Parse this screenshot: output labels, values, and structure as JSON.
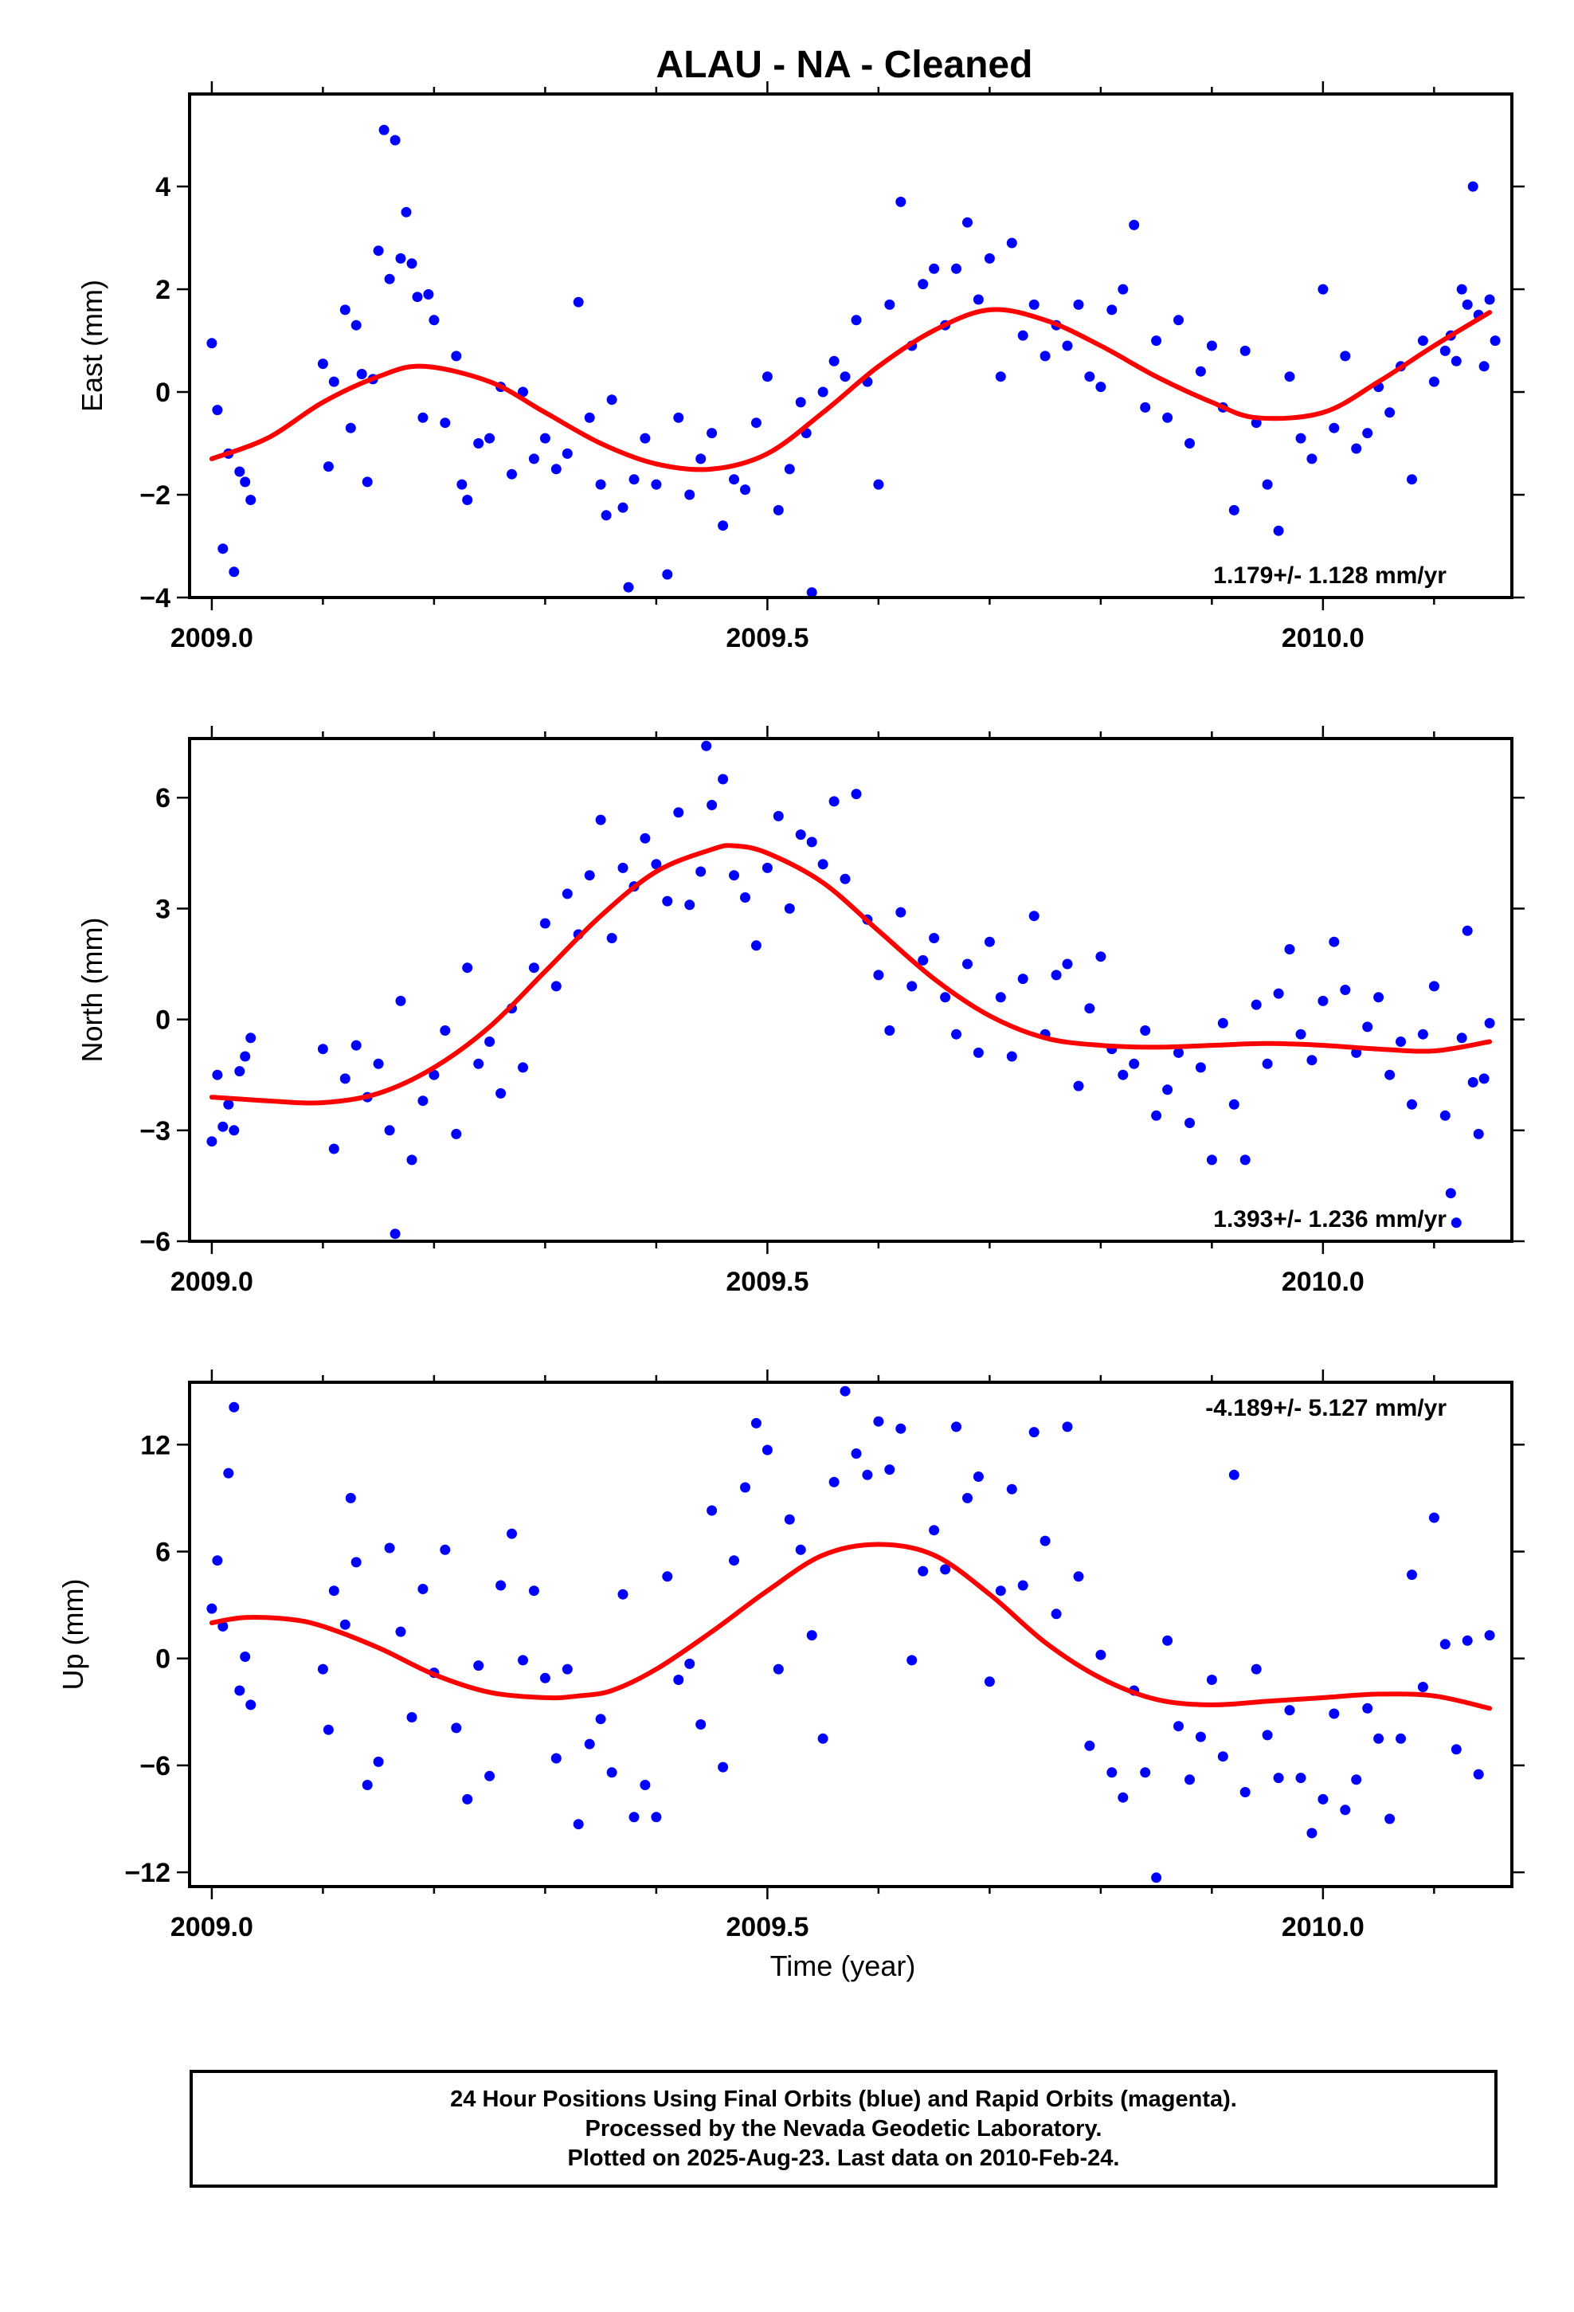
{
  "page": {
    "title": "ALAU  - NA - Cleaned",
    "xlabel": "Time (year)",
    "footer_lines": [
      "24 Hour Positions Using Final Orbits (blue) and Rapid Orbits (magenta).",
      "Processed by the Nevada Geodetic Laboratory.",
      "Plotted on 2025-Aug-23. Last data on 2010-Feb-24."
    ]
  },
  "colors": {
    "points": "#0000ff",
    "fit": "#ff0000",
    "frame": "#000000"
  },
  "chart_data": [
    {
      "type": "scatter",
      "ylabel": "East (mm)",
      "rate_text": "1.179+/- 1.128 mm/yr",
      "rate_position": "bottom-right",
      "xlim": [
        2008.98,
        2010.17
      ],
      "ylim": [
        -4,
        5.8
      ],
      "xticks": [
        2009.0,
        2009.5,
        2010.0
      ],
      "xtick_labels": [
        "2009.0",
        "2009.5",
        "2010.0"
      ],
      "yticks": [
        -4,
        -2,
        0,
        2,
        4
      ],
      "ytick_labels": [
        "−4",
        "−2",
        "0",
        "2",
        "4"
      ],
      "fit_curve": {
        "x": [
          2009.0,
          2009.05,
          2009.1,
          2009.15,
          2009.19,
          2009.25,
          2009.3,
          2009.35,
          2009.4,
          2009.45,
          2009.5,
          2009.55,
          2009.6,
          2009.65,
          2009.7,
          2009.75,
          2009.8,
          2009.85,
          2009.9,
          2009.94,
          2010.0,
          2010.05,
          2010.1,
          2010.15
        ],
        "y": [
          -1.3,
          -0.9,
          -0.2,
          0.3,
          0.5,
          0.2,
          -0.4,
          -1.0,
          -1.4,
          -1.5,
          -1.2,
          -0.4,
          0.5,
          1.2,
          1.6,
          1.4,
          0.9,
          0.3,
          -0.2,
          -0.5,
          -0.4,
          0.2,
          0.9,
          1.55
        ]
      },
      "points": {
        "x": [
          2009.0,
          2009.005,
          2009.01,
          2009.015,
          2009.02,
          2009.025,
          2009.03,
          2009.035,
          2009.1,
          2009.105,
          2009.11,
          2009.12,
          2009.125,
          2009.13,
          2009.135,
          2009.14,
          2009.145,
          2009.15,
          2009.155,
          2009.16,
          2009.165,
          2009.17,
          2009.175,
          2009.18,
          2009.185,
          2009.19,
          2009.195,
          2009.2,
          2009.21,
          2009.22,
          2009.225,
          2009.23,
          2009.24,
          2009.25,
          2009.26,
          2009.27,
          2009.28,
          2009.29,
          2009.3,
          2009.31,
          2009.32,
          2009.33,
          2009.34,
          2009.35,
          2009.355,
          2009.36,
          2009.37,
          2009.375,
          2009.38,
          2009.39,
          2009.4,
          2009.41,
          2009.42,
          2009.43,
          2009.44,
          2009.45,
          2009.46,
          2009.47,
          2009.48,
          2009.49,
          2009.5,
          2009.51,
          2009.52,
          2009.53,
          2009.535,
          2009.54,
          2009.55,
          2009.56,
          2009.57,
          2009.58,
          2009.59,
          2009.6,
          2009.61,
          2009.62,
          2009.63,
          2009.64,
          2009.65,
          2009.66,
          2009.67,
          2009.68,
          2009.69,
          2009.7,
          2009.71,
          2009.72,
          2009.73,
          2009.74,
          2009.75,
          2009.76,
          2009.77,
          2009.78,
          2009.79,
          2009.8,
          2009.81,
          2009.82,
          2009.83,
          2009.84,
          2009.85,
          2009.86,
          2009.87,
          2009.88,
          2009.89,
          2009.9,
          2009.91,
          2009.92,
          2009.93,
          2009.94,
          2009.95,
          2009.96,
          2009.97,
          2009.98,
          2009.99,
          2010.0,
          2010.01,
          2010.02,
          2010.03,
          2010.04,
          2010.05,
          2010.06,
          2010.07,
          2010.08,
          2010.09,
          2010.1,
          2010.11,
          2010.115,
          2010.12,
          2010.125,
          2010.13,
          2010.135,
          2010.14,
          2010.145,
          2010.15,
          2010.155
        ],
        "y": [
          0.95,
          -0.35,
          -3.05,
          -1.2,
          -3.5,
          -1.55,
          -1.75,
          -2.1,
          0.55,
          -1.45,
          0.2,
          1.6,
          -0.7,
          1.3,
          0.35,
          -1.75,
          0.25,
          2.75,
          5.1,
          2.2,
          4.9,
          2.6,
          3.5,
          2.5,
          1.85,
          -0.5,
          1.9,
          1.4,
          -0.6,
          0.7,
          -1.8,
          -2.1,
          -1.0,
          -0.9,
          0.1,
          -1.6,
          0.0,
          -1.3,
          -0.9,
          -1.5,
          -1.2,
          1.75,
          -0.5,
          -1.8,
          -2.4,
          -0.15,
          -2.25,
          -3.8,
          -1.7,
          -0.9,
          -1.8,
          -3.55,
          -0.5,
          -2.0,
          -1.3,
          -0.8,
          -2.6,
          -1.7,
          -1.9,
          -0.6,
          0.3,
          -2.3,
          -1.5,
          -0.2,
          -0.8,
          -3.9,
          0.0,
          0.6,
          0.3,
          1.4,
          0.2,
          -1.8,
          1.7,
          3.7,
          0.9,
          2.1,
          2.4,
          1.3,
          2.4,
          3.3,
          1.8,
          2.6,
          0.3,
          2.9,
          1.1,
          1.7,
          0.7,
          1.3,
          0.9,
          1.7,
          0.3,
          0.1,
          1.6,
          2.0,
          3.25,
          -0.3,
          1.0,
          -0.5,
          1.4,
          -1.0,
          0.4,
          0.9,
          -0.3,
          -2.3,
          0.8,
          -0.6,
          -1.8,
          -2.7,
          0.3,
          -0.9,
          -1.3,
          2.0,
          -0.7,
          0.7,
          -1.1,
          -0.8,
          0.1,
          -0.4,
          0.5,
          -1.7,
          1.0,
          0.2,
          0.8,
          1.1,
          0.6,
          2.0,
          1.7,
          4.0,
          1.5,
          0.5,
          1.8,
          1.0
        ],
        "size": "small"
      }
    },
    {
      "type": "scatter",
      "ylabel": "North (mm)",
      "rate_text": "1.393+/- 1.236 mm/yr",
      "rate_position": "bottom-right",
      "xlim": [
        2008.98,
        2010.17
      ],
      "ylim": [
        -6,
        7.6
      ],
      "xticks": [
        2009.0,
        2009.5,
        2010.0
      ],
      "xtick_labels": [
        "2009.0",
        "2009.5",
        "2010.0"
      ],
      "yticks": [
        -6,
        -3,
        0,
        3,
        6
      ],
      "ytick_labels": [
        "−6",
        "−3",
        "0",
        "3",
        "6"
      ],
      "fit_curve": {
        "x": [
          2009.0,
          2009.05,
          2009.1,
          2009.15,
          2009.2,
          2009.25,
          2009.3,
          2009.35,
          2009.4,
          2009.45,
          2009.47,
          2009.5,
          2009.55,
          2009.6,
          2009.65,
          2009.7,
          2009.75,
          2009.8,
          2009.85,
          2009.9,
          2009.95,
          2010.0,
          2010.05,
          2010.1,
          2010.15
        ],
        "y": [
          -2.1,
          -2.2,
          -2.25,
          -2.0,
          -1.3,
          -0.2,
          1.3,
          2.8,
          4.0,
          4.6,
          4.7,
          4.5,
          3.7,
          2.4,
          1.1,
          0.1,
          -0.5,
          -0.7,
          -0.75,
          -0.7,
          -0.65,
          -0.7,
          -0.8,
          -0.85,
          -0.6
        ]
      },
      "points": {
        "x": [
          2009.0,
          2009.005,
          2009.01,
          2009.015,
          2009.02,
          2009.025,
          2009.03,
          2009.035,
          2009.1,
          2009.11,
          2009.12,
          2009.13,
          2009.14,
          2009.15,
          2009.16,
          2009.165,
          2009.17,
          2009.18,
          2009.19,
          2009.2,
          2009.21,
          2009.22,
          2009.23,
          2009.24,
          2009.25,
          2009.26,
          2009.27,
          2009.28,
          2009.29,
          2009.3,
          2009.31,
          2009.32,
          2009.33,
          2009.34,
          2009.35,
          2009.36,
          2009.37,
          2009.38,
          2009.39,
          2009.4,
          2009.41,
          2009.42,
          2009.43,
          2009.44,
          2009.445,
          2009.45,
          2009.46,
          2009.47,
          2009.48,
          2009.49,
          2009.5,
          2009.51,
          2009.52,
          2009.53,
          2009.54,
          2009.55,
          2009.56,
          2009.57,
          2009.58,
          2009.59,
          2009.6,
          2009.61,
          2009.62,
          2009.63,
          2009.64,
          2009.65,
          2009.66,
          2009.67,
          2009.68,
          2009.69,
          2009.7,
          2009.71,
          2009.72,
          2009.73,
          2009.74,
          2009.75,
          2009.76,
          2009.77,
          2009.78,
          2009.79,
          2009.8,
          2009.81,
          2009.82,
          2009.83,
          2009.84,
          2009.85,
          2009.86,
          2009.87,
          2009.88,
          2009.89,
          2009.9,
          2009.91,
          2009.92,
          2009.93,
          2009.94,
          2009.95,
          2009.96,
          2009.97,
          2009.98,
          2009.99,
          2010.0,
          2010.01,
          2010.02,
          2010.03,
          2010.04,
          2010.05,
          2010.06,
          2010.07,
          2010.08,
          2010.09,
          2010.1,
          2010.11,
          2010.115,
          2010.12,
          2010.125,
          2010.13,
          2010.135,
          2010.14,
          2010.145,
          2010.15
        ],
        "y": [
          -3.3,
          -1.5,
          -2.9,
          -2.3,
          -3.0,
          -1.4,
          -1.0,
          -0.5,
          -0.8,
          -3.5,
          -1.6,
          -0.7,
          -2.1,
          -1.2,
          -3.0,
          -5.8,
          0.5,
          -3.8,
          -2.2,
          -1.5,
          -0.3,
          -3.1,
          1.4,
          -1.2,
          -0.6,
          -2.0,
          0.3,
          -1.3,
          1.4,
          2.6,
          0.9,
          3.4,
          2.3,
          3.9,
          5.4,
          2.2,
          4.1,
          3.6,
          4.9,
          4.2,
          3.2,
          5.6,
          3.1,
          4.0,
          7.4,
          5.8,
          6.5,
          3.9,
          3.3,
          2.0,
          4.1,
          5.5,
          3.0,
          5.0,
          4.8,
          4.2,
          5.9,
          3.8,
          6.1,
          2.7,
          1.2,
          -0.3,
          2.9,
          0.9,
          1.6,
          2.2,
          0.6,
          -0.4,
          1.5,
          -0.9,
          2.1,
          0.6,
          -1.0,
          1.1,
          2.8,
          -0.4,
          1.2,
          1.5,
          -1.8,
          0.3,
          1.7,
          -0.8,
          -1.5,
          -1.2,
          -0.3,
          -2.6,
          -1.9,
          -0.9,
          -2.8,
          -1.3,
          -3.8,
          -0.1,
          -2.3,
          -3.8,
          0.4,
          -1.2,
          0.7,
          1.9,
          -0.4,
          -1.1,
          0.5,
          2.1,
          0.8,
          -0.9,
          -0.2,
          0.6,
          -1.5,
          -0.6,
          -2.3,
          -0.4,
          0.9,
          -2.6,
          -4.7,
          -5.5,
          -0.5,
          2.4,
          -1.7,
          -3.1,
          -1.6,
          -0.1
        ],
        "size": "small"
      }
    },
    {
      "type": "scatter",
      "ylabel": "Up (mm)",
      "rate_text": "-4.189+/- 5.127 mm/yr",
      "rate_position": "top-right",
      "xlim": [
        2008.98,
        2010.17
      ],
      "ylim": [
        -12.8,
        15.5
      ],
      "xticks": [
        2009.0,
        2009.5,
        2010.0
      ],
      "xtick_labels": [
        "2009.0",
        "2009.5",
        "2010.0"
      ],
      "yticks": [
        -12,
        -6,
        0,
        6,
        12
      ],
      "ytick_labels": [
        "−12",
        "−6",
        "0",
        "6",
        "12"
      ],
      "fit_curve": {
        "x": [
          2009.0,
          2009.03,
          2009.07,
          2009.1,
          2009.15,
          2009.2,
          2009.25,
          2009.3,
          2009.33,
          2009.36,
          2009.4,
          2009.45,
          2009.5,
          2009.55,
          2009.6,
          2009.65,
          2009.7,
          2009.75,
          2009.8,
          2009.85,
          2009.9,
          2009.95,
          2010.0,
          2010.05,
          2010.1,
          2010.15
        ],
        "y": [
          2.0,
          2.3,
          2.2,
          1.8,
          0.6,
          -0.9,
          -1.9,
          -2.2,
          -2.1,
          -1.8,
          -0.6,
          1.5,
          3.8,
          5.8,
          6.4,
          5.8,
          3.6,
          0.9,
          -1.1,
          -2.3,
          -2.6,
          -2.4,
          -2.2,
          -2.0,
          -2.1,
          -2.8
        ]
      },
      "points": {
        "x": [
          2009.0,
          2009.005,
          2009.01,
          2009.015,
          2009.02,
          2009.025,
          2009.03,
          2009.035,
          2009.1,
          2009.105,
          2009.11,
          2009.12,
          2009.125,
          2009.13,
          2009.14,
          2009.15,
          2009.16,
          2009.17,
          2009.18,
          2009.19,
          2009.2,
          2009.21,
          2009.22,
          2009.23,
          2009.24,
          2009.25,
          2009.26,
          2009.27,
          2009.28,
          2009.29,
          2009.3,
          2009.31,
          2009.32,
          2009.33,
          2009.34,
          2009.35,
          2009.36,
          2009.37,
          2009.38,
          2009.39,
          2009.4,
          2009.41,
          2009.42,
          2009.43,
          2009.44,
          2009.45,
          2009.46,
          2009.47,
          2009.48,
          2009.49,
          2009.5,
          2009.51,
          2009.52,
          2009.53,
          2009.54,
          2009.55,
          2009.56,
          2009.57,
          2009.58,
          2009.59,
          2009.6,
          2009.61,
          2009.62,
          2009.63,
          2009.64,
          2009.65,
          2009.66,
          2009.67,
          2009.68,
          2009.69,
          2009.7,
          2009.71,
          2009.72,
          2009.73,
          2009.74,
          2009.75,
          2009.76,
          2009.77,
          2009.78,
          2009.79,
          2009.8,
          2009.81,
          2009.82,
          2009.83,
          2009.84,
          2009.85,
          2009.86,
          2009.87,
          2009.88,
          2009.89,
          2009.9,
          2009.91,
          2009.92,
          2009.93,
          2009.94,
          2009.95,
          2009.96,
          2009.97,
          2009.98,
          2009.99,
          2010.0,
          2010.01,
          2010.02,
          2010.03,
          2010.04,
          2010.05,
          2010.06,
          2010.07,
          2010.08,
          2010.09,
          2010.1,
          2010.11,
          2010.12,
          2010.13,
          2010.14,
          2010.15
        ],
        "y": [
          2.8,
          5.5,
          1.8,
          10.4,
          14.1,
          -1.8,
          0.1,
          -2.6,
          -0.6,
          -4.0,
          3.8,
          1.9,
          9.0,
          5.4,
          -7.1,
          -5.8,
          6.2,
          1.5,
          -3.3,
          3.9,
          -0.8,
          6.1,
          -3.9,
          -7.9,
          -0.4,
          -6.6,
          4.1,
          7.0,
          -0.1,
          3.8,
          -1.1,
          -5.6,
          -0.6,
          -9.3,
          -4.8,
          -3.4,
          -6.4,
          3.6,
          -8.9,
          -7.1,
          -8.9,
          4.6,
          -1.2,
          -0.3,
          -3.7,
          8.3,
          -6.1,
          5.5,
          9.6,
          13.2,
          11.7,
          -0.6,
          7.8,
          6.1,
          1.3,
          -4.5,
          9.9,
          15.0,
          11.5,
          10.3,
          13.3,
          10.6,
          12.9,
          -0.1,
          4.9,
          7.2,
          5.0,
          13.0,
          9.0,
          10.2,
          -1.3,
          3.8,
          9.5,
          4.1,
          12.7,
          6.6,
          2.5,
          13.0,
          4.6,
          -4.9,
          0.2,
          -6.4,
          -7.8,
          -1.8,
          -6.4,
          -12.3,
          1.0,
          -3.8,
          -6.8,
          -4.4,
          -1.2,
          -5.5,
          10.3,
          -7.5,
          -0.6,
          -4.3,
          -6.7,
          -2.9,
          -6.7,
          -9.8,
          -7.9,
          -3.1,
          -8.5,
          -6.8,
          -2.8,
          -4.5,
          -9.0,
          -4.5,
          4.7,
          -1.6,
          7.9,
          0.8,
          -5.1,
          1.0,
          -6.5,
          1.3
        ],
        "size": "small"
      }
    }
  ]
}
